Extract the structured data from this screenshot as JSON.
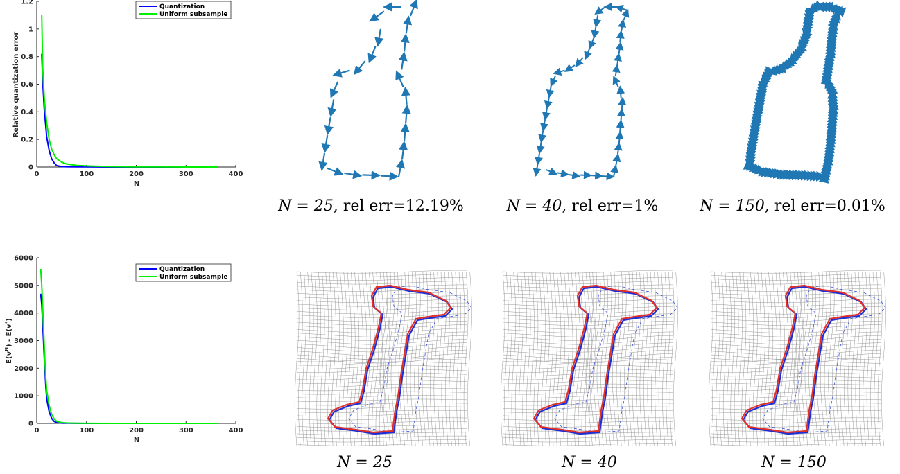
{
  "chart_data": [
    {
      "type": "line",
      "xlabel": "N",
      "ylabel": "Relative quantization error",
      "xlim": [
        0,
        400
      ],
      "ylim": [
        0,
        1.2
      ],
      "xticks": [
        "0",
        "100",
        "200",
        "300",
        "400"
      ],
      "yticks": [
        "0",
        "0.2",
        "0.4",
        "0.6",
        "0.8",
        "1",
        "1.2"
      ],
      "legend_position": "top-right",
      "series": [
        {
          "name": "Quantization",
          "color": "#0000ff",
          "x": [
            10,
            12,
            15,
            20,
            25,
            30,
            35,
            40,
            50,
            60,
            80,
            100,
            150,
            200,
            250,
            300,
            365
          ],
          "y": [
            0.82,
            0.62,
            0.42,
            0.22,
            0.12,
            0.06,
            0.03,
            0.01,
            0.004,
            0.002,
            0.001,
            0.001,
            0.0001,
            0,
            0,
            0,
            0
          ]
        },
        {
          "name": "Uniform subsample",
          "color": "#00ee00",
          "x": [
            10,
            12,
            15,
            20,
            25,
            30,
            35,
            40,
            50,
            60,
            80,
            100,
            150,
            200,
            250,
            300,
            365
          ],
          "y": [
            1.1,
            0.72,
            0.5,
            0.32,
            0.2,
            0.13,
            0.09,
            0.06,
            0.035,
            0.022,
            0.012,
            0.008,
            0.003,
            0.001,
            0.001,
            0,
            0
          ]
        }
      ]
    },
    {
      "type": "line",
      "xlabel": "N",
      "ylabel": "E(v^N) - E(v^*)",
      "xlim": [
        0,
        400
      ],
      "ylim": [
        0,
        6000
      ],
      "xticks": [
        "0",
        "100",
        "200",
        "300",
        "400"
      ],
      "yticks": [
        "0",
        "1000",
        "2000",
        "3000",
        "4000",
        "5000",
        "6000"
      ],
      "legend_position": "top-right",
      "series": [
        {
          "name": "Quantization",
          "color": "#0000ff",
          "x": [
            8,
            10,
            12,
            15,
            18,
            20,
            25,
            30,
            35,
            40,
            50,
            60,
            80,
            100,
            150,
            200,
            250,
            300,
            365
          ],
          "y": [
            4700,
            4300,
            3600,
            2400,
            1400,
            900,
            420,
            180,
            70,
            30,
            10,
            5,
            2,
            1,
            0,
            0,
            0,
            0,
            0
          ]
        },
        {
          "name": "Uniform subsample",
          "color": "#00ee00",
          "x": [
            8,
            10,
            12,
            15,
            18,
            20,
            25,
            30,
            35,
            40,
            50,
            60,
            80,
            100,
            150,
            200,
            250,
            300,
            365
          ],
          "y": [
            5600,
            5000,
            4200,
            2800,
            1700,
            1200,
            650,
            330,
            160,
            80,
            30,
            14,
            5,
            2,
            1,
            0,
            0,
            0,
            0
          ]
        }
      ]
    }
  ],
  "legend": {
    "quantization": "Quantization",
    "uniform": "Uniform subsample"
  },
  "top_captions": [
    {
      "n": "N = 25",
      "err": ", rel err=12.19%"
    },
    {
      "n": "N = 40",
      "err": ", rel err=1%"
    },
    {
      "n": "N = 150",
      "err": ", rel err=0.01%"
    }
  ],
  "bottom_captions": [
    "N = 25",
    "N = 40",
    "N = 150"
  ],
  "colors": {
    "arrow": "#1f77b4",
    "target_shape": "#e0302a",
    "deformed_shape": "#1c2fd6",
    "template_dashed": "#3a4fe0",
    "grid": "#9a9a9a"
  }
}
